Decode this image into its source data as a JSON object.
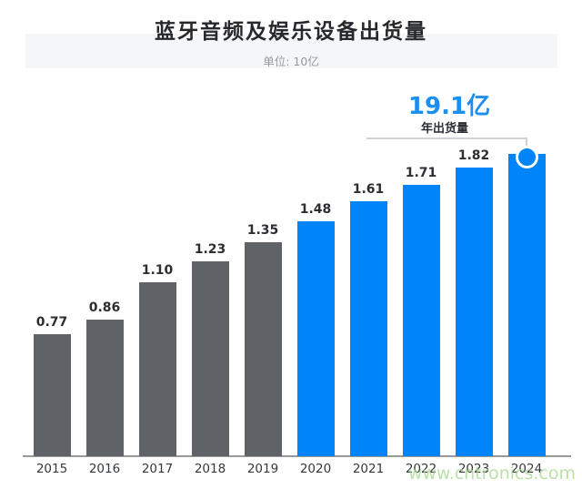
{
  "header": {
    "title": "蓝牙音频及娱乐设备出货量",
    "subtitle": "单位: 10亿"
  },
  "annotation": {
    "headline": "19.1亿",
    "sublabel": "年出货量"
  },
  "watermark": {
    "text": "www.cntronics.com"
  },
  "colors": {
    "bar_gray": "#5f6368",
    "bar_blue": "#0084fa",
    "headline_blue": "#1b8ef2",
    "band": "#f5f6f7",
    "axis": "#98999c",
    "connector": "#cfd3d7",
    "watermark": "#a4d88c"
  },
  "chart_data": {
    "type": "bar",
    "title": "蓝牙音频及娱乐设备出货量",
    "subtitle": "单位: 10亿",
    "categories": [
      "2015",
      "2016",
      "2017",
      "2018",
      "2019",
      "2020",
      "2021",
      "2022",
      "2023",
      "2024"
    ],
    "values": [
      0.77,
      0.86,
      1.1,
      1.23,
      1.35,
      1.48,
      1.61,
      1.71,
      1.82,
      1.91
    ],
    "value_labels": [
      "0.77",
      "0.86",
      "1.10",
      "1.23",
      "1.35",
      "1.48",
      "1.61",
      "1.71",
      "1.82",
      ""
    ],
    "bar_styles": [
      "gray",
      "gray",
      "gray",
      "gray",
      "gray",
      "blue",
      "blue",
      "blue",
      "blue",
      "blue"
    ],
    "highlight_index": 9,
    "annotation": {
      "headline": "19.1亿",
      "label": "年出货量",
      "applies_to": "2024"
    },
    "ylim": [
      0,
      2.1
    ],
    "grid": false,
    "legend": false
  }
}
